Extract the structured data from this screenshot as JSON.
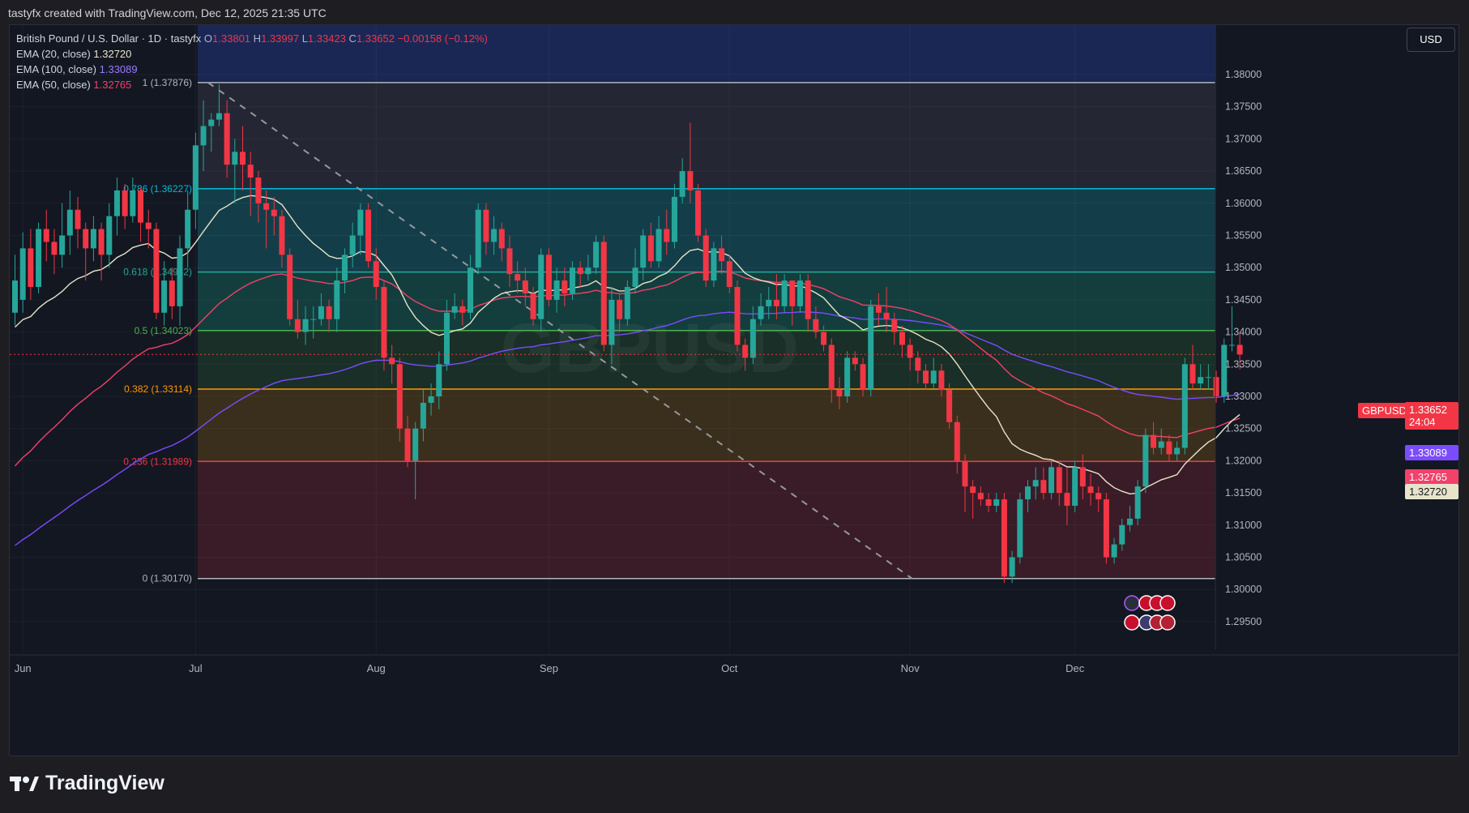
{
  "header": {
    "created_by": "tastyfx created with TradingView.com, Dec 12, 2025 21:35 UTC",
    "currency": "USD"
  },
  "legend": {
    "symbol": "British Pound / U.S. Dollar · 1D · tastyfx",
    "open_label": "O",
    "open": "1.33801",
    "high_label": "H",
    "high": "1.33997",
    "low_label": "L",
    "low": "1.33423",
    "close_label": "C",
    "close": "1.33652",
    "change": "−0.00158 (−0.12%)",
    "ema20": {
      "label": "EMA (20, close)",
      "value": "1.32720",
      "color": "#e8e4c9"
    },
    "ema100": {
      "label": "EMA (100, close)",
      "value": "1.33089",
      "color": "#7b4cff"
    },
    "ema50": {
      "label": "EMA (50, close)",
      "value": "1.32765",
      "color": "#f2416b"
    }
  },
  "watermark": "GBPUSD",
  "price_tag": {
    "symbol": "GBPUSD",
    "price": "1.33652",
    "countdown": "24:04"
  },
  "axis_tags": {
    "ema100": "1.33089",
    "ema50": "1.32765",
    "ema20": "1.32720"
  },
  "branding": "TradingView",
  "chart_data": {
    "type": "candlestick",
    "y_ticks": [
      "1.38000",
      "1.37500",
      "1.37000",
      "1.36500",
      "1.36000",
      "1.35500",
      "1.35000",
      "1.34500",
      "1.34000",
      "1.33500",
      "1.33000",
      "1.32500",
      "1.32000",
      "1.31500",
      "1.31000",
      "1.30500",
      "1.30000",
      "1.29500"
    ],
    "x_ticks": [
      {
        "label": "Jun",
        "index": 1
      },
      {
        "label": "Jul",
        "index": 23
      },
      {
        "label": "Aug",
        "index": 46
      },
      {
        "label": "Sep",
        "index": 68
      },
      {
        "label": "Oct",
        "index": 91
      },
      {
        "label": "Nov",
        "index": 114
      },
      {
        "label": "Dec",
        "index": 135
      }
    ],
    "fib_levels": [
      {
        "ratio": "1",
        "label": "1 (1.37876)",
        "price": 1.37876,
        "color": "#b2b5be"
      },
      {
        "ratio": "0.786",
        "label": "0.786 (1.36227)",
        "price": 1.36227,
        "color": "#00bcd4"
      },
      {
        "ratio": "0.618",
        "label": "0.618 (1.34932)",
        "price": 1.34932,
        "color": "#26a69a"
      },
      {
        "ratio": "0.5",
        "label": "0.5 (1.34023)",
        "price": 1.34023,
        "color": "#4caf50"
      },
      {
        "ratio": "0.382",
        "label": "0.382 (1.33114)",
        "price": 1.33114,
        "color": "#ff9800"
      },
      {
        "ratio": "0.236",
        "label": "0.236 (1.31989)",
        "price": 1.31989,
        "color": "#f23645"
      },
      {
        "ratio": "0",
        "label": "0 (1.30170)",
        "price": 1.3017,
        "color": "#b2b5be"
      }
    ],
    "current_price": 1.33652,
    "ohlc": [
      [
        1.343,
        1.348,
        1.341,
        1.352
      ],
      [
        1.345,
        1.353,
        1.343,
        1.3555
      ],
      [
        1.353,
        1.347,
        1.345,
        1.356
      ],
      [
        1.347,
        1.356,
        1.346,
        1.357
      ],
      [
        1.356,
        1.354,
        1.351,
        1.359
      ],
      [
        1.354,
        1.352,
        1.349,
        1.356
      ],
      [
        1.352,
        1.355,
        1.35,
        1.36
      ],
      [
        1.355,
        1.359,
        1.352,
        1.362
      ],
      [
        1.359,
        1.356,
        1.353,
        1.361
      ],
      [
        1.356,
        1.353,
        1.348,
        1.357
      ],
      [
        1.353,
        1.356,
        1.351,
        1.358
      ],
      [
        1.356,
        1.352,
        1.348,
        1.357
      ],
      [
        1.352,
        1.358,
        1.35,
        1.36
      ],
      [
        1.358,
        1.362,
        1.355,
        1.364
      ],
      [
        1.362,
        1.358,
        1.356,
        1.363
      ],
      [
        1.358,
        1.362,
        1.357,
        1.364
      ],
      [
        1.362,
        1.357,
        1.354,
        1.3625
      ],
      [
        1.357,
        1.356,
        1.353,
        1.359
      ],
      [
        1.356,
        1.343,
        1.342,
        1.357
      ],
      [
        1.343,
        1.348,
        1.341,
        1.351
      ],
      [
        1.348,
        1.344,
        1.342,
        1.35
      ],
      [
        1.344,
        1.353,
        1.341,
        1.355
      ],
      [
        1.353,
        1.359,
        1.35,
        1.362
      ],
      [
        1.359,
        1.369,
        1.356,
        1.371
      ],
      [
        1.369,
        1.372,
        1.365,
        1.376
      ],
      [
        1.372,
        1.373,
        1.368,
        1.374
      ],
      [
        1.373,
        1.374,
        1.372,
        1.3785
      ],
      [
        1.374,
        1.366,
        1.364,
        1.376
      ],
      [
        1.366,
        1.368,
        1.36,
        1.37
      ],
      [
        1.368,
        1.366,
        1.362,
        1.372
      ],
      [
        1.366,
        1.364,
        1.358,
        1.368
      ],
      [
        1.364,
        1.36,
        1.357,
        1.365
      ],
      [
        1.36,
        1.359,
        1.353,
        1.362
      ],
      [
        1.359,
        1.358,
        1.355,
        1.361
      ],
      [
        1.358,
        1.352,
        1.35,
        1.359
      ],
      [
        1.352,
        1.342,
        1.341,
        1.353
      ],
      [
        1.342,
        1.34,
        1.339,
        1.345
      ],
      [
        1.34,
        1.342,
        1.338,
        1.344
      ],
      [
        1.342,
        1.342,
        1.339,
        1.344
      ],
      [
        1.342,
        1.344,
        1.341,
        1.346
      ],
      [
        1.344,
        1.342,
        1.34,
        1.345
      ],
      [
        1.342,
        1.348,
        1.34,
        1.35
      ],
      [
        1.348,
        1.352,
        1.346,
        1.353
      ],
      [
        1.352,
        1.355,
        1.35,
        1.357
      ],
      [
        1.355,
        1.359,
        1.352,
        1.36
      ],
      [
        1.359,
        1.351,
        1.35,
        1.36
      ],
      [
        1.351,
        1.347,
        1.345,
        1.353
      ],
      [
        1.347,
        1.336,
        1.334,
        1.348
      ],
      [
        1.336,
        1.335,
        1.332,
        1.338
      ],
      [
        1.335,
        1.325,
        1.323,
        1.336
      ],
      [
        1.325,
        1.32,
        1.319,
        1.327
      ],
      [
        1.32,
        1.325,
        1.314,
        1.326
      ],
      [
        1.325,
        1.329,
        1.323,
        1.331
      ],
      [
        1.329,
        1.33,
        1.327,
        1.332
      ],
      [
        1.33,
        1.335,
        1.328,
        1.337
      ],
      [
        1.335,
        1.343,
        1.334,
        1.345
      ],
      [
        1.343,
        1.344,
        1.342,
        1.346
      ],
      [
        1.344,
        1.343,
        1.341,
        1.345
      ],
      [
        1.343,
        1.35,
        1.342,
        1.352
      ],
      [
        1.35,
        1.359,
        1.349,
        1.36
      ],
      [
        1.359,
        1.354,
        1.352,
        1.36
      ],
      [
        1.354,
        1.356,
        1.352,
        1.358
      ],
      [
        1.356,
        1.353,
        1.351,
        1.357
      ],
      [
        1.353,
        1.349,
        1.347,
        1.355
      ],
      [
        1.349,
        1.348,
        1.346,
        1.351
      ],
      [
        1.348,
        1.346,
        1.344,
        1.35
      ],
      [
        1.346,
        1.342,
        1.341,
        1.347
      ],
      [
        1.342,
        1.352,
        1.34,
        1.353
      ],
      [
        1.352,
        1.345,
        1.344,
        1.353
      ],
      [
        1.345,
        1.348,
        1.343,
        1.35
      ],
      [
        1.348,
        1.346,
        1.344,
        1.35
      ],
      [
        1.346,
        1.35,
        1.345,
        1.351
      ],
      [
        1.35,
        1.349,
        1.347,
        1.351
      ],
      [
        1.349,
        1.35,
        1.348,
        1.352
      ],
      [
        1.35,
        1.354,
        1.349,
        1.355
      ],
      [
        1.354,
        1.338,
        1.337,
        1.355
      ],
      [
        1.338,
        1.345,
        1.335,
        1.347
      ],
      [
        1.345,
        1.342,
        1.34,
        1.346
      ],
      [
        1.342,
        1.347,
        1.341,
        1.348
      ],
      [
        1.347,
        1.35,
        1.346,
        1.353
      ],
      [
        1.35,
        1.355,
        1.348,
        1.356
      ],
      [
        1.355,
        1.351,
        1.35,
        1.357
      ],
      [
        1.351,
        1.356,
        1.35,
        1.358
      ],
      [
        1.356,
        1.354,
        1.352,
        1.359
      ],
      [
        1.354,
        1.361,
        1.353,
        1.363
      ],
      [
        1.361,
        1.365,
        1.36,
        1.367
      ],
      [
        1.365,
        1.362,
        1.36,
        1.3725
      ],
      [
        1.362,
        1.355,
        1.354,
        1.363
      ],
      [
        1.355,
        1.348,
        1.347,
        1.356
      ],
      [
        1.348,
        1.353,
        1.347,
        1.354
      ],
      [
        1.353,
        1.351,
        1.349,
        1.355
      ],
      [
        1.351,
        1.347,
        1.346,
        1.352
      ],
      [
        1.347,
        1.338,
        1.337,
        1.348
      ],
      [
        1.338,
        1.336,
        1.334,
        1.339
      ],
      [
        1.336,
        1.342,
        1.335,
        1.344
      ],
      [
        1.342,
        1.344,
        1.341,
        1.346
      ],
      [
        1.344,
        1.345,
        1.342,
        1.347
      ],
      [
        1.345,
        1.344,
        1.342,
        1.349
      ],
      [
        1.344,
        1.348,
        1.343,
        1.349
      ],
      [
        1.348,
        1.344,
        1.341,
        1.348
      ],
      [
        1.344,
        1.348,
        1.343,
        1.349
      ],
      [
        1.348,
        1.342,
        1.34,
        1.349
      ],
      [
        1.342,
        1.34,
        1.339,
        1.344
      ],
      [
        1.34,
        1.338,
        1.337,
        1.341
      ],
      [
        1.338,
        1.331,
        1.329,
        1.339
      ],
      [
        1.331,
        1.33,
        1.328,
        1.333
      ],
      [
        1.33,
        1.336,
        1.329,
        1.337
      ],
      [
        1.336,
        1.335,
        1.334,
        1.337
      ],
      [
        1.335,
        1.331,
        1.33,
        1.336
      ],
      [
        1.331,
        1.344,
        1.33,
        1.345
      ],
      [
        1.344,
        1.343,
        1.341,
        1.346
      ],
      [
        1.343,
        1.342,
        1.34,
        1.347
      ],
      [
        1.342,
        1.34,
        1.338,
        1.343
      ],
      [
        1.34,
        1.338,
        1.336,
        1.341
      ],
      [
        1.338,
        1.336,
        1.334,
        1.339
      ],
      [
        1.336,
        1.334,
        1.332,
        1.337
      ],
      [
        1.334,
        1.332,
        1.331,
        1.335
      ],
      [
        1.332,
        1.334,
        1.331,
        1.336
      ],
      [
        1.334,
        1.331,
        1.33,
        1.335
      ],
      [
        1.331,
        1.326,
        1.325,
        1.332
      ],
      [
        1.326,
        1.32,
        1.318,
        1.327
      ],
      [
        1.32,
        1.316,
        1.312,
        1.321
      ],
      [
        1.316,
        1.315,
        1.311,
        1.317
      ],
      [
        1.315,
        1.314,
        1.313,
        1.316
      ],
      [
        1.314,
        1.313,
        1.312,
        1.315
      ],
      [
        1.313,
        1.314,
        1.312,
        1.315
      ],
      [
        1.314,
        1.302,
        1.301,
        1.315
      ],
      [
        1.302,
        1.305,
        1.301,
        1.306
      ],
      [
        1.305,
        1.314,
        1.304,
        1.315
      ],
      [
        1.314,
        1.316,
        1.312,
        1.317
      ],
      [
        1.316,
        1.317,
        1.314,
        1.319
      ],
      [
        1.317,
        1.315,
        1.314,
        1.319
      ],
      [
        1.315,
        1.319,
        1.314,
        1.32
      ],
      [
        1.319,
        1.315,
        1.313,
        1.32
      ],
      [
        1.315,
        1.313,
        1.31,
        1.319
      ],
      [
        1.313,
        1.319,
        1.312,
        1.32
      ],
      [
        1.319,
        1.316,
        1.314,
        1.321
      ],
      [
        1.316,
        1.315,
        1.313,
        1.318
      ],
      [
        1.315,
        1.314,
        1.312,
        1.316
      ],
      [
        1.314,
        1.305,
        1.304,
        1.315
      ],
      [
        1.305,
        1.307,
        1.304,
        1.308
      ],
      [
        1.307,
        1.31,
        1.306,
        1.311
      ],
      [
        1.31,
        1.311,
        1.309,
        1.313
      ],
      [
        1.311,
        1.316,
        1.31,
        1.317
      ],
      [
        1.316,
        1.324,
        1.315,
        1.325
      ],
      [
        1.324,
        1.322,
        1.321,
        1.326
      ],
      [
        1.322,
        1.323,
        1.321,
        1.325
      ],
      [
        1.323,
        1.321,
        1.32,
        1.324
      ],
      [
        1.321,
        1.322,
        1.32,
        1.323
      ],
      [
        1.322,
        1.335,
        1.321,
        1.336
      ],
      [
        1.335,
        1.332,
        1.331,
        1.338
      ],
      [
        1.332,
        1.333,
        1.331,
        1.335
      ],
      [
        1.333,
        1.333,
        1.331,
        1.335
      ],
      [
        1.333,
        1.33,
        1.329,
        1.334
      ],
      [
        1.33,
        1.338,
        1.329,
        1.339
      ],
      [
        1.338,
        1.338,
        1.337,
        1.344
      ],
      [
        1.338,
        1.3365,
        1.3342,
        1.34
      ]
    ]
  }
}
